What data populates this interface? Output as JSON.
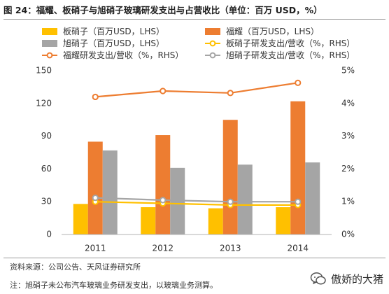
{
  "figure": {
    "title": "图 24：福耀、板硝子与旭硝子玻璃研发支出与占营收比（单位：百万 USD，%）",
    "source": "资料来源：公司公告、天风证券研究所",
    "footnote": "注：旭硝子未公布汽车玻璃业务研发支出，以玻璃业务测算。",
    "watermark": "傲娇的大猪"
  },
  "chart_data": {
    "type": "bar",
    "categories": [
      "2011",
      "2012",
      "2013",
      "2014"
    ],
    "series": [
      {
        "name": "板硝子（百万USD，LHS）",
        "kind": "bar",
        "axis": "left",
        "color": "#ffc000",
        "values": [
          28,
          25,
          24,
          25
        ]
      },
      {
        "name": "福耀（百万USD，LHS）",
        "kind": "bar",
        "axis": "left",
        "color": "#ed7d31",
        "values": [
          85,
          91,
          105,
          122
        ]
      },
      {
        "name": "旭硝子（百万USD，LHS）",
        "kind": "bar",
        "axis": "left",
        "color": "#a5a5a5",
        "values": [
          77,
          61,
          64,
          66
        ]
      },
      {
        "name": "板硝子研发支出/营收（%，RHS）",
        "kind": "line",
        "axis": "right",
        "color": "#ffc000",
        "values": [
          1.0,
          0.95,
          0.9,
          0.9
        ]
      },
      {
        "name": "福耀研发支出/营收（%，RHS）",
        "kind": "line",
        "axis": "right",
        "color": "#ed7d31",
        "values": [
          4.2,
          4.38,
          4.32,
          4.63
        ]
      },
      {
        "name": "旭硝子研发支出/营收（%，RHS）",
        "kind": "line",
        "axis": "right",
        "color": "#a5a5a5",
        "values": [
          1.12,
          1.05,
          1.0,
          1.0
        ]
      }
    ],
    "legend_order": [
      0,
      1,
      2,
      3,
      4,
      5
    ],
    "legend_position": "top",
    "y_left": {
      "ticks": [
        0,
        30,
        60,
        90,
        120,
        150
      ],
      "tick_labels": [
        "0",
        "30",
        "60",
        "90",
        "120",
        "150"
      ],
      "range": [
        0,
        150
      ]
    },
    "y_right": {
      "ticks": [
        0,
        1,
        2,
        3,
        4,
        5
      ],
      "tick_labels": [
        "0%",
        "1%",
        "2%",
        "3%",
        "4%",
        "5%"
      ],
      "range": [
        0,
        5
      ]
    },
    "grid": false
  }
}
